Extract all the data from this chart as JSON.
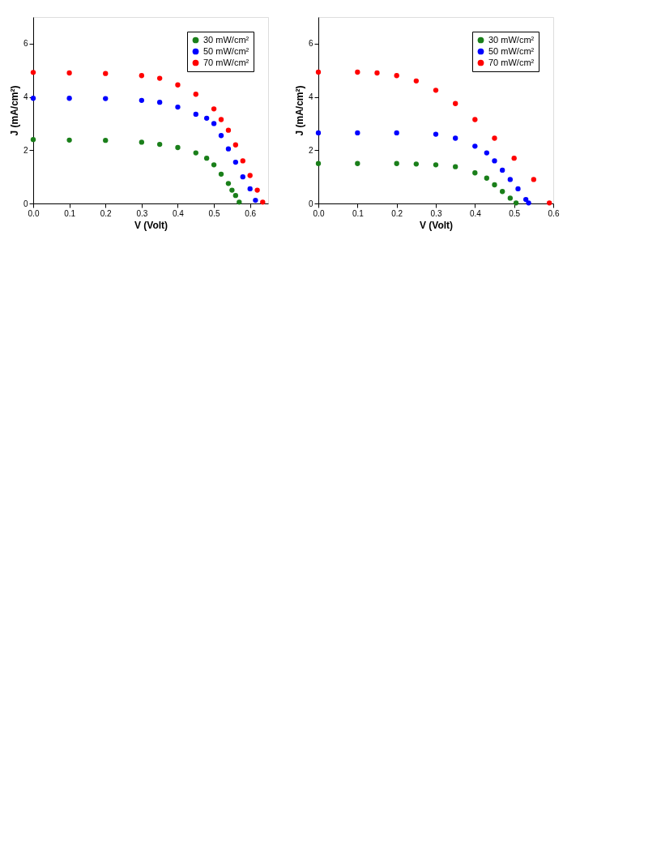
{
  "chart_data": [
    {
      "type": "scatter",
      "xlabel": "V (Volt)",
      "ylabel": "J (mA/cm²)",
      "xlim": [
        0,
        0.65
      ],
      "ylim": [
        0,
        7
      ],
      "xticks": [
        {
          "value": 0,
          "label": "0.0"
        },
        {
          "value": 0.1,
          "label": "0.1"
        },
        {
          "value": 0.2,
          "label": "0.2"
        },
        {
          "value": 0.3,
          "label": "0.3"
        },
        {
          "value": 0.4,
          "label": "0.4"
        },
        {
          "value": 0.5,
          "label": "0.5"
        },
        {
          "value": 0.6,
          "label": "0.6"
        }
      ],
      "yticks": [
        0,
        2,
        4,
        6
      ],
      "grid": false,
      "legend": "top right",
      "marker": "circle",
      "series": [
        {
          "name": "30 mW/cm²",
          "color": "#1a7f1a",
          "x": [
            0,
            0.1,
            0.2,
            0.3,
            0.35,
            0.4,
            0.45,
            0.48,
            0.5,
            0.52,
            0.54,
            0.55,
            0.56,
            0.57
          ],
          "values": [
            2.4,
            2.38,
            2.37,
            2.3,
            2.22,
            2.1,
            1.9,
            1.7,
            1.45,
            1.1,
            0.75,
            0.5,
            0.3,
            0.05
          ]
        },
        {
          "name": "50 mW/cm²",
          "color": "#0000ff",
          "x": [
            0,
            0.1,
            0.2,
            0.3,
            0.35,
            0.4,
            0.45,
            0.48,
            0.5,
            0.52,
            0.54,
            0.56,
            0.58,
            0.6,
            0.615
          ],
          "values": [
            3.95,
            3.95,
            3.94,
            3.87,
            3.8,
            3.62,
            3.35,
            3.2,
            3.0,
            2.55,
            2.05,
            1.55,
            1.0,
            0.55,
            0.12
          ]
        },
        {
          "name": "70 mW/cm²",
          "color": "#ff0000",
          "x": [
            0,
            0.1,
            0.2,
            0.3,
            0.35,
            0.4,
            0.45,
            0.5,
            0.52,
            0.54,
            0.56,
            0.58,
            0.6,
            0.62,
            0.635
          ],
          "values": [
            4.92,
            4.9,
            4.88,
            4.8,
            4.7,
            4.45,
            4.1,
            3.55,
            3.15,
            2.75,
            2.2,
            1.6,
            1.05,
            0.5,
            0.05
          ]
        }
      ]
    },
    {
      "type": "scatter",
      "xlabel": "V (Volt)",
      "ylabel": "J (mA/cm²)",
      "xlim": [
        0,
        0.6
      ],
      "ylim": [
        0,
        7
      ],
      "xticks": [
        {
          "value": 0,
          "label": "0.0"
        },
        {
          "value": 0.1,
          "label": "0.1"
        },
        {
          "value": 0.2,
          "label": "0.2"
        },
        {
          "value": 0.3,
          "label": "0.3"
        },
        {
          "value": 0.4,
          "label": "0.4"
        },
        {
          "value": 0.5,
          "label": "0.5"
        },
        {
          "value": 0.6,
          "label": "0.6"
        }
      ],
      "yticks": [
        0,
        2,
        4,
        6
      ],
      "grid": false,
      "legend": "top right",
      "marker": "circle",
      "series": [
        {
          "name": "30 mW/cm²",
          "color": "#1a7f1a",
          "x": [
            0,
            0.1,
            0.2,
            0.25,
            0.3,
            0.35,
            0.4,
            0.43,
            0.45,
            0.47,
            0.49,
            0.505
          ],
          "values": [
            1.5,
            1.5,
            1.5,
            1.48,
            1.45,
            1.38,
            1.15,
            0.95,
            0.7,
            0.45,
            0.2,
            0.02
          ]
        },
        {
          "name": "50 mW/cm²",
          "color": "#0000ff",
          "x": [
            0,
            0.1,
            0.2,
            0.3,
            0.35,
            0.4,
            0.43,
            0.45,
            0.47,
            0.49,
            0.51,
            0.53,
            0.537
          ],
          "values": [
            2.65,
            2.65,
            2.65,
            2.6,
            2.45,
            2.15,
            1.9,
            1.6,
            1.25,
            0.9,
            0.55,
            0.15,
            0.02
          ]
        },
        {
          "name": "70 mW/cm²",
          "color": "#ff0000",
          "x": [
            0,
            0.1,
            0.15,
            0.2,
            0.25,
            0.3,
            0.35,
            0.4,
            0.45,
            0.5,
            0.55,
            0.59
          ],
          "values": [
            4.93,
            4.93,
            4.9,
            4.8,
            4.6,
            4.25,
            3.75,
            3.15,
            2.45,
            1.7,
            0.9,
            0.02
          ]
        }
      ]
    }
  ]
}
